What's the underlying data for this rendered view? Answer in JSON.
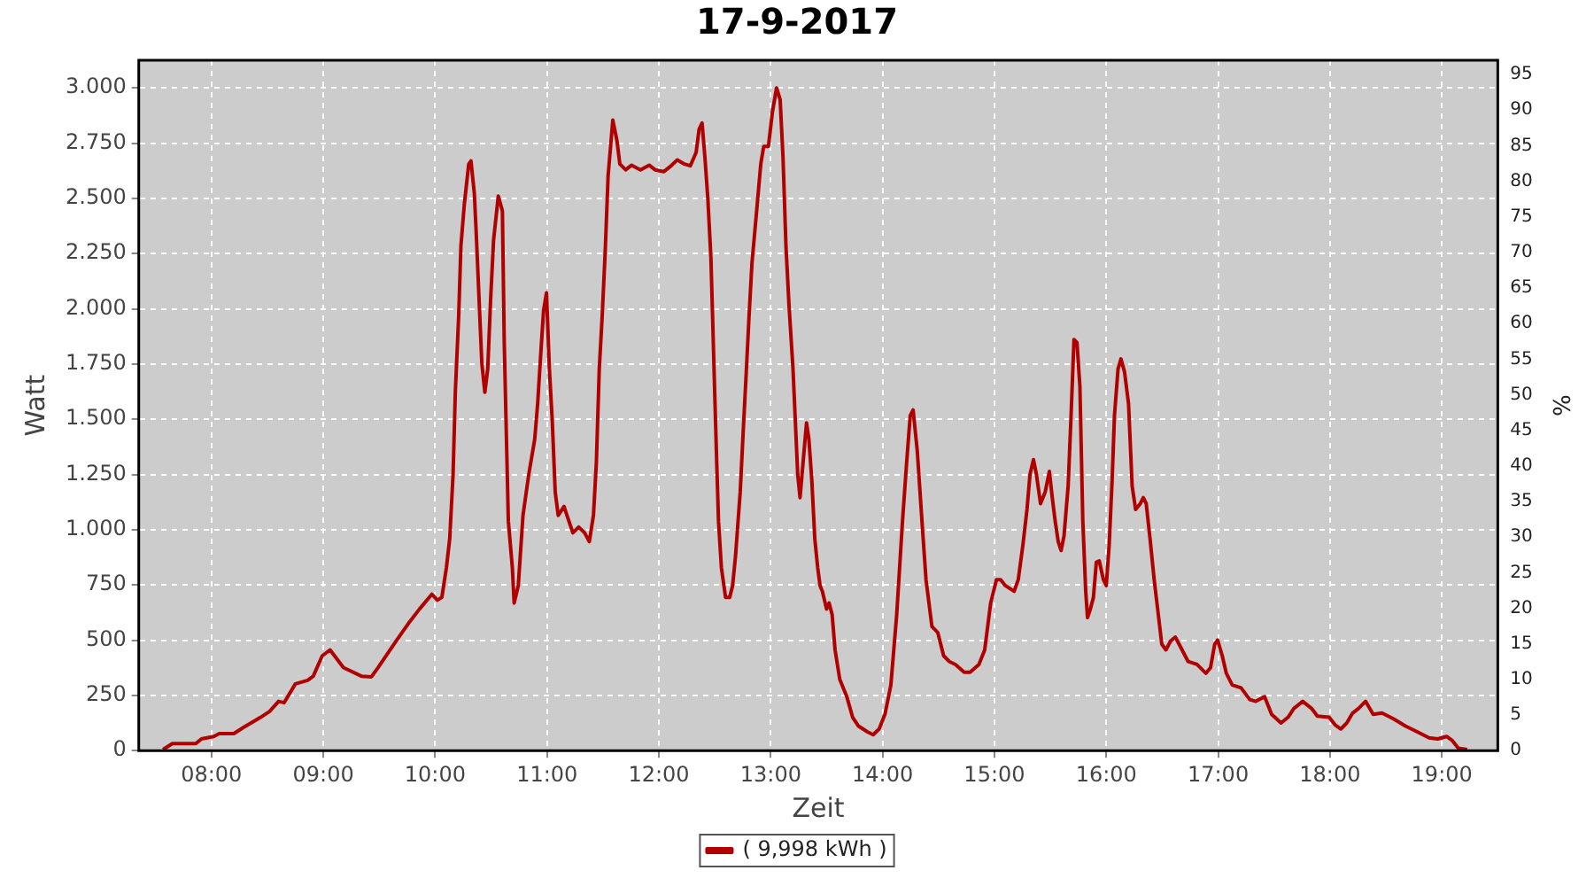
{
  "chart_data": {
    "type": "line",
    "title": "17-9-2017",
    "xlabel": "Zeit",
    "ylabel": "Watt",
    "y2label": "%",
    "xlim": [
      7.35,
      19.5
    ],
    "xticks": [
      {
        "value": 8,
        "label": "08:00"
      },
      {
        "value": 9,
        "label": "09:00"
      },
      {
        "value": 10,
        "label": "10:00"
      },
      {
        "value": 11,
        "label": "11:00"
      },
      {
        "value": 12,
        "label": "12:00"
      },
      {
        "value": 13,
        "label": "13:00"
      },
      {
        "value": 14,
        "label": "14:00"
      },
      {
        "value": 15,
        "label": "15:00"
      },
      {
        "value": 16,
        "label": "16:00"
      },
      {
        "value": 17,
        "label": "17:00"
      },
      {
        "value": 18,
        "label": "18:00"
      },
      {
        "value": 19,
        "label": "19:00"
      }
    ],
    "ylim": [
      0,
      3125
    ],
    "yticks": [
      0,
      250,
      500,
      750,
      {
        "value": 1000,
        "label": "1.000"
      },
      {
        "value": 1250,
        "label": "1.250"
      },
      {
        "value": 1500,
        "label": "1.500"
      },
      {
        "value": 1750,
        "label": "1.750"
      },
      {
        "value": 2000,
        "label": "2.000"
      },
      {
        "value": 2250,
        "label": "2.250"
      },
      {
        "value": 2500,
        "label": "2.500"
      },
      {
        "value": 2750,
        "label": "2.750"
      },
      {
        "value": 3000,
        "label": "3.000"
      }
    ],
    "y2lim": [
      0,
      97
    ],
    "y2ticks": [
      0,
      5,
      10,
      15,
      20,
      25,
      30,
      35,
      40,
      45,
      50,
      55,
      60,
      65,
      70,
      75,
      80,
      85,
      90,
      95
    ],
    "grid": true,
    "legend": "bottom",
    "marker": "none",
    "line_style": "solid",
    "series": [
      {
        "name": "( 9,998 kWh )",
        "color": "#b00000",
        "x": [
          7.567,
          7.65,
          7.86,
          7.91,
          8.02,
          8.07,
          8.2,
          8.28,
          8.44,
          8.52,
          8.6,
          8.65,
          8.75,
          8.86,
          8.91,
          8.99,
          9.06,
          9.18,
          9.34,
          9.43,
          9.49,
          9.65,
          9.76,
          9.86,
          9.97,
          10.02,
          10.06,
          10.1,
          10.13,
          10.16,
          10.18,
          10.21,
          10.23,
          10.26,
          10.3,
          10.32,
          10.35,
          10.365,
          10.417,
          10.444,
          10.47,
          10.496,
          10.522,
          10.564,
          10.601,
          10.617,
          10.654,
          10.69,
          10.706,
          10.743,
          10.785,
          10.837,
          10.89,
          10.916,
          10.942,
          10.969,
          10.995,
          11.021,
          11.047,
          11.073,
          11.1,
          11.152,
          11.178,
          11.231,
          11.283,
          11.336,
          11.378,
          11.415,
          11.441,
          11.467,
          11.493,
          11.52,
          11.546,
          11.588,
          11.625,
          11.651,
          11.703,
          11.756,
          11.835,
          11.913,
          11.966,
          12.045,
          12.097,
          12.165,
          12.228,
          12.281,
          12.333,
          12.36,
          12.386,
          12.412,
          12.438,
          12.465,
          12.48,
          12.496,
          12.517,
          12.533,
          12.559,
          12.596,
          12.633,
          12.659,
          12.685,
          12.727,
          12.753,
          12.78,
          12.806,
          12.832,
          12.874,
          12.911,
          12.937,
          12.979,
          13.016,
          13.052,
          13.084,
          13.11,
          13.136,
          13.163,
          13.199,
          13.241,
          13.262,
          13.289,
          13.32,
          13.341,
          13.367,
          13.394,
          13.42,
          13.441,
          13.462,
          13.499,
          13.522,
          13.549,
          13.575,
          13.617,
          13.68,
          13.732,
          13.785,
          13.864,
          13.916,
          13.969,
          14.021,
          14.074,
          14.126,
          14.178,
          14.215,
          14.247,
          14.273,
          14.31,
          14.352,
          14.388,
          14.441,
          14.493,
          14.546,
          14.598,
          14.651,
          14.73,
          14.782,
          14.861,
          14.913,
          14.966,
          15.018,
          15.055,
          15.097,
          15.176,
          15.213,
          15.255,
          15.291,
          15.318,
          15.349,
          15.375,
          15.412,
          15.454,
          15.491,
          15.517,
          15.543,
          15.57,
          15.596,
          15.622,
          15.659,
          15.685,
          15.711,
          15.738,
          15.764,
          15.79,
          15.816,
          15.832,
          15.858,
          15.885,
          15.911,
          15.937,
          15.974,
          16.0,
          16.026,
          16.052,
          16.073,
          16.105,
          16.131,
          16.163,
          16.199,
          16.231,
          16.262,
          16.304,
          16.331,
          16.357,
          16.391,
          16.428,
          16.459,
          16.496,
          16.533,
          16.575,
          16.617,
          16.664,
          16.732,
          16.811,
          16.89,
          16.932,
          16.969,
          16.995,
          17.037,
          17.073,
          17.126,
          17.205,
          17.283,
          17.336,
          17.415,
          17.478,
          17.562,
          17.625,
          17.677,
          17.756,
          17.835,
          17.887,
          17.992,
          18.045,
          18.097,
          18.15,
          18.202,
          18.255,
          18.318,
          18.386,
          18.465,
          18.57,
          18.675,
          18.78,
          18.885,
          18.963,
          19.042,
          19.094,
          19.147,
          19.226
        ],
        "values": [
          5,
          32,
          32,
          53,
          64,
          77,
          77,
          103,
          151,
          178,
          223,
          217,
          302,
          318,
          337,
          429,
          456,
          376,
          337,
          334,
          376,
          496,
          575,
          641,
          708,
          681,
          694,
          827,
          959,
          1251,
          1622,
          1966,
          2284,
          2470,
          2655,
          2669,
          2523,
          2364,
          1754,
          1622,
          1728,
          2046,
          2311,
          2510,
          2443,
          1860,
          1039,
          827,
          668,
          747,
          1065,
          1251,
          1410,
          1569,
          1781,
          1993,
          2072,
          1728,
          1489,
          1171,
          1065,
          1105,
          1065,
          986,
          1012,
          986,
          946,
          1065,
          1304,
          1728,
          1966,
          2258,
          2602,
          2854,
          2761,
          2655,
          2629,
          2650,
          2629,
          2650,
          2629,
          2621,
          2642,
          2674,
          2655,
          2647,
          2708,
          2814,
          2841,
          2682,
          2496,
          2231,
          1966,
          1675,
          1304,
          1039,
          827,
          694,
          694,
          747,
          880,
          1171,
          1436,
          1701,
          1966,
          2205,
          2443,
          2655,
          2735,
          2735,
          2894,
          3000,
          2947,
          2682,
          2284,
          2019,
          1728,
          1251,
          1145,
          1304,
          1484,
          1410,
          1224,
          959,
          827,
          747,
          721,
          641,
          668,
          615,
          456,
          323,
          244,
          151,
          111,
          85,
          72,
          98,
          164,
          297,
          615,
          1039,
          1304,
          1516,
          1542,
          1357,
          1039,
          774,
          562,
          535,
          429,
          403,
          390,
          355,
          355,
          390,
          456,
          668,
          774,
          774,
          747,
          721,
          774,
          933,
          1092,
          1251,
          1317,
          1251,
          1118,
          1171,
          1264,
          1145,
          1039,
          946,
          906,
          972,
          1198,
          1516,
          1861,
          1847,
          1648,
          1039,
          721,
          602,
          641,
          694,
          853,
          859,
          774,
          747,
          933,
          1224,
          1516,
          1728,
          1773,
          1714,
          1569,
          1198,
          1092,
          1118,
          1145,
          1118,
          959,
          774,
          641,
          482,
          456,
          496,
          514,
          469,
          403,
          390,
          350,
          376,
          482,
          501,
          429,
          350,
          297,
          284,
          231,
          223,
          244,
          164,
          125,
          151,
          191,
          223,
          191,
          156,
          151,
          117,
          98,
          125,
          170,
          191,
          223,
          164,
          170,
          143,
          111,
          85,
          58,
          53,
          64,
          45,
          11,
          5
        ]
      }
    ]
  }
}
